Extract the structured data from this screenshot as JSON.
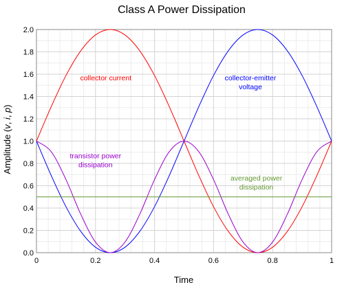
{
  "chart_data": {
    "type": "line",
    "title": "Class A Power Dissipation",
    "xlabel": "Time",
    "ylabel_parts": [
      "Amplitude (",
      "v",
      ", ",
      "i",
      ", ",
      "p",
      ")"
    ],
    "xlim": [
      0,
      1
    ],
    "ylim": [
      0,
      2
    ],
    "xticks": [
      0,
      0.2,
      0.4,
      0.6,
      0.8,
      1
    ],
    "xtick_labels": [
      "0",
      "0.2",
      "0.4",
      "0.6",
      "0.8",
      "1"
    ],
    "yticks": [
      0,
      0.2,
      0.4,
      0.6,
      0.8,
      1.0,
      1.2,
      1.4,
      1.6,
      1.8,
      2.0
    ],
    "ytick_labels": [
      "0.0",
      "0.2",
      "0.4",
      "0.6",
      "0.8",
      "1.0",
      "1.2",
      "1.4",
      "1.6",
      "1.8",
      "2.0"
    ],
    "grid": true,
    "x": [
      0,
      0.05,
      0.1,
      0.15,
      0.2,
      0.25,
      0.3,
      0.35,
      0.4,
      0.45,
      0.5,
      0.55,
      0.6,
      0.65,
      0.7,
      0.75,
      0.8,
      0.85,
      0.9,
      0.95,
      1.0
    ],
    "series": [
      {
        "color": "#ff0000",
        "values": [
          1.0,
          1.309,
          1.588,
          1.809,
          1.951,
          2.0,
          1.951,
          1.809,
          1.588,
          1.309,
          1.0,
          0.691,
          0.412,
          0.191,
          0.049,
          0.0,
          0.049,
          0.191,
          0.412,
          0.691,
          1.0
        ]
      },
      {
        "color": "#0000ff",
        "values": [
          1.0,
          0.691,
          0.412,
          0.191,
          0.049,
          0.0,
          0.049,
          0.191,
          0.412,
          0.691,
          1.0,
          1.309,
          1.588,
          1.809,
          1.951,
          2.0,
          1.951,
          1.809,
          1.588,
          1.309,
          1.0
        ]
      },
      {
        "color": "#9900cc",
        "values": [
          1.0,
          0.905,
          0.655,
          0.345,
          0.095,
          0.0,
          0.095,
          0.345,
          0.655,
          0.905,
          1.0,
          0.905,
          0.655,
          0.345,
          0.095,
          0.0,
          0.095,
          0.345,
          0.655,
          0.905,
          1.0
        ]
      },
      {
        "color": "#669933",
        "values": [
          0.5,
          0.5,
          0.5,
          0.5,
          0.5,
          0.5,
          0.5,
          0.5,
          0.5,
          0.5,
          0.5,
          0.5,
          0.5,
          0.5,
          0.5,
          0.5,
          0.5,
          0.5,
          0.5,
          0.5,
          0.5
        ]
      }
    ],
    "annotations": [
      {
        "lines": [
          "collector current"
        ],
        "x": 0.235,
        "y": 1.545,
        "color": "#ff0000"
      },
      {
        "lines": [
          "collector-emitter",
          "voltage"
        ],
        "x": 0.725,
        "y": 1.545,
        "color": "#0000ff"
      },
      {
        "lines": [
          "transistor power",
          "dissipation"
        ],
        "x": 0.2,
        "y": 0.845,
        "color": "#9900cc"
      },
      {
        "lines": [
          "averaged power",
          "dissipation"
        ],
        "x": 0.745,
        "y": 0.645,
        "color": "#669933"
      }
    ]
  }
}
